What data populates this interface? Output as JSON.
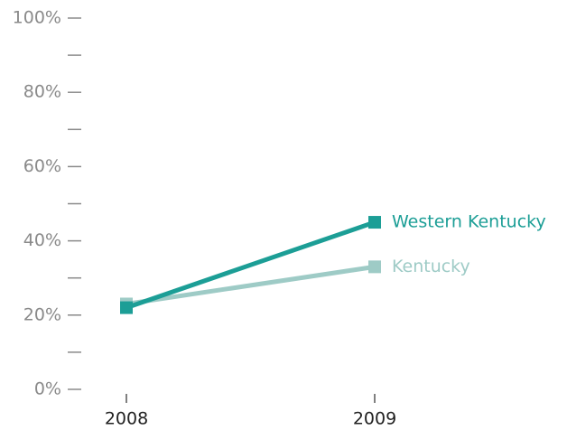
{
  "chart_data": {
    "type": "line",
    "x": [
      "2008",
      "2009"
    ],
    "series": [
      {
        "name": "Kentucky",
        "color": "#9ecbc6",
        "values": [
          23,
          33
        ]
      },
      {
        "name": "Western Kentucky",
        "color": "#1c9e96",
        "values": [
          22,
          45
        ]
      }
    ],
    "ylim": [
      0,
      100
    ],
    "yticks": [
      {
        "value": 0,
        "label": "0%"
      },
      {
        "value": 20,
        "label": "20%"
      },
      {
        "value": 40,
        "label": "40%"
      },
      {
        "value": 60,
        "label": "60%"
      },
      {
        "value": 80,
        "label": "80%"
      },
      {
        "value": 100,
        "label": "100%"
      }
    ],
    "yminorticks": [
      10,
      30,
      50,
      70,
      90
    ]
  }
}
